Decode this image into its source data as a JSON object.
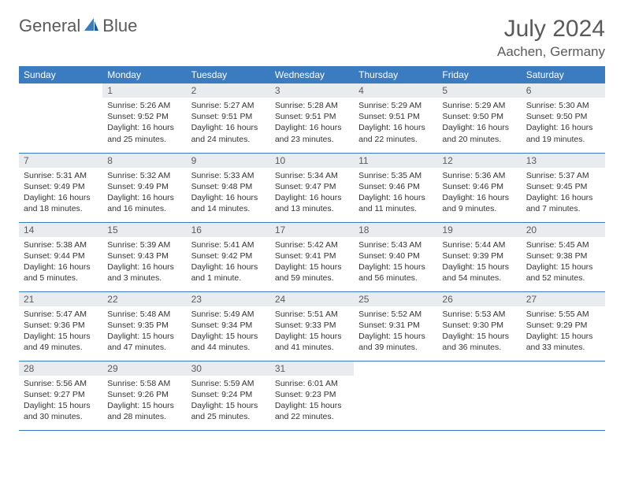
{
  "logo": {
    "part1": "General",
    "part2": "Blue"
  },
  "title": "July 2024",
  "location": "Aachen, Germany",
  "colors": {
    "header_bg": "#3b7bbf",
    "header_fg": "#ffffff",
    "daynum_bg": "#e9ecef",
    "text": "#5a5a5a",
    "rule": "#3b7bbf"
  },
  "weekdays": [
    "Sunday",
    "Monday",
    "Tuesday",
    "Wednesday",
    "Thursday",
    "Friday",
    "Saturday"
  ],
  "weeks": [
    [
      null,
      {
        "n": "1",
        "sunrise": "5:26 AM",
        "sunset": "9:52 PM",
        "daylight": "16 hours and 25 minutes."
      },
      {
        "n": "2",
        "sunrise": "5:27 AM",
        "sunset": "9:51 PM",
        "daylight": "16 hours and 24 minutes."
      },
      {
        "n": "3",
        "sunrise": "5:28 AM",
        "sunset": "9:51 PM",
        "daylight": "16 hours and 23 minutes."
      },
      {
        "n": "4",
        "sunrise": "5:29 AM",
        "sunset": "9:51 PM",
        "daylight": "16 hours and 22 minutes."
      },
      {
        "n": "5",
        "sunrise": "5:29 AM",
        "sunset": "9:50 PM",
        "daylight": "16 hours and 20 minutes."
      },
      {
        "n": "6",
        "sunrise": "5:30 AM",
        "sunset": "9:50 PM",
        "daylight": "16 hours and 19 minutes."
      }
    ],
    [
      {
        "n": "7",
        "sunrise": "5:31 AM",
        "sunset": "9:49 PM",
        "daylight": "16 hours and 18 minutes."
      },
      {
        "n": "8",
        "sunrise": "5:32 AM",
        "sunset": "9:49 PM",
        "daylight": "16 hours and 16 minutes."
      },
      {
        "n": "9",
        "sunrise": "5:33 AM",
        "sunset": "9:48 PM",
        "daylight": "16 hours and 14 minutes."
      },
      {
        "n": "10",
        "sunrise": "5:34 AM",
        "sunset": "9:47 PM",
        "daylight": "16 hours and 13 minutes."
      },
      {
        "n": "11",
        "sunrise": "5:35 AM",
        "sunset": "9:46 PM",
        "daylight": "16 hours and 11 minutes."
      },
      {
        "n": "12",
        "sunrise": "5:36 AM",
        "sunset": "9:46 PM",
        "daylight": "16 hours and 9 minutes."
      },
      {
        "n": "13",
        "sunrise": "5:37 AM",
        "sunset": "9:45 PM",
        "daylight": "16 hours and 7 minutes."
      }
    ],
    [
      {
        "n": "14",
        "sunrise": "5:38 AM",
        "sunset": "9:44 PM",
        "daylight": "16 hours and 5 minutes."
      },
      {
        "n": "15",
        "sunrise": "5:39 AM",
        "sunset": "9:43 PM",
        "daylight": "16 hours and 3 minutes."
      },
      {
        "n": "16",
        "sunrise": "5:41 AM",
        "sunset": "9:42 PM",
        "daylight": "16 hours and 1 minute."
      },
      {
        "n": "17",
        "sunrise": "5:42 AM",
        "sunset": "9:41 PM",
        "daylight": "15 hours and 59 minutes."
      },
      {
        "n": "18",
        "sunrise": "5:43 AM",
        "sunset": "9:40 PM",
        "daylight": "15 hours and 56 minutes."
      },
      {
        "n": "19",
        "sunrise": "5:44 AM",
        "sunset": "9:39 PM",
        "daylight": "15 hours and 54 minutes."
      },
      {
        "n": "20",
        "sunrise": "5:45 AM",
        "sunset": "9:38 PM",
        "daylight": "15 hours and 52 minutes."
      }
    ],
    [
      {
        "n": "21",
        "sunrise": "5:47 AM",
        "sunset": "9:36 PM",
        "daylight": "15 hours and 49 minutes."
      },
      {
        "n": "22",
        "sunrise": "5:48 AM",
        "sunset": "9:35 PM",
        "daylight": "15 hours and 47 minutes."
      },
      {
        "n": "23",
        "sunrise": "5:49 AM",
        "sunset": "9:34 PM",
        "daylight": "15 hours and 44 minutes."
      },
      {
        "n": "24",
        "sunrise": "5:51 AM",
        "sunset": "9:33 PM",
        "daylight": "15 hours and 41 minutes."
      },
      {
        "n": "25",
        "sunrise": "5:52 AM",
        "sunset": "9:31 PM",
        "daylight": "15 hours and 39 minutes."
      },
      {
        "n": "26",
        "sunrise": "5:53 AM",
        "sunset": "9:30 PM",
        "daylight": "15 hours and 36 minutes."
      },
      {
        "n": "27",
        "sunrise": "5:55 AM",
        "sunset": "9:29 PM",
        "daylight": "15 hours and 33 minutes."
      }
    ],
    [
      {
        "n": "28",
        "sunrise": "5:56 AM",
        "sunset": "9:27 PM",
        "daylight": "15 hours and 30 minutes."
      },
      {
        "n": "29",
        "sunrise": "5:58 AM",
        "sunset": "9:26 PM",
        "daylight": "15 hours and 28 minutes."
      },
      {
        "n": "30",
        "sunrise": "5:59 AM",
        "sunset": "9:24 PM",
        "daylight": "15 hours and 25 minutes."
      },
      {
        "n": "31",
        "sunrise": "6:01 AM",
        "sunset": "9:23 PM",
        "daylight": "15 hours and 22 minutes."
      },
      null,
      null,
      null
    ]
  ],
  "labels": {
    "sunrise": "Sunrise:",
    "sunset": "Sunset:",
    "daylight": "Daylight:"
  }
}
